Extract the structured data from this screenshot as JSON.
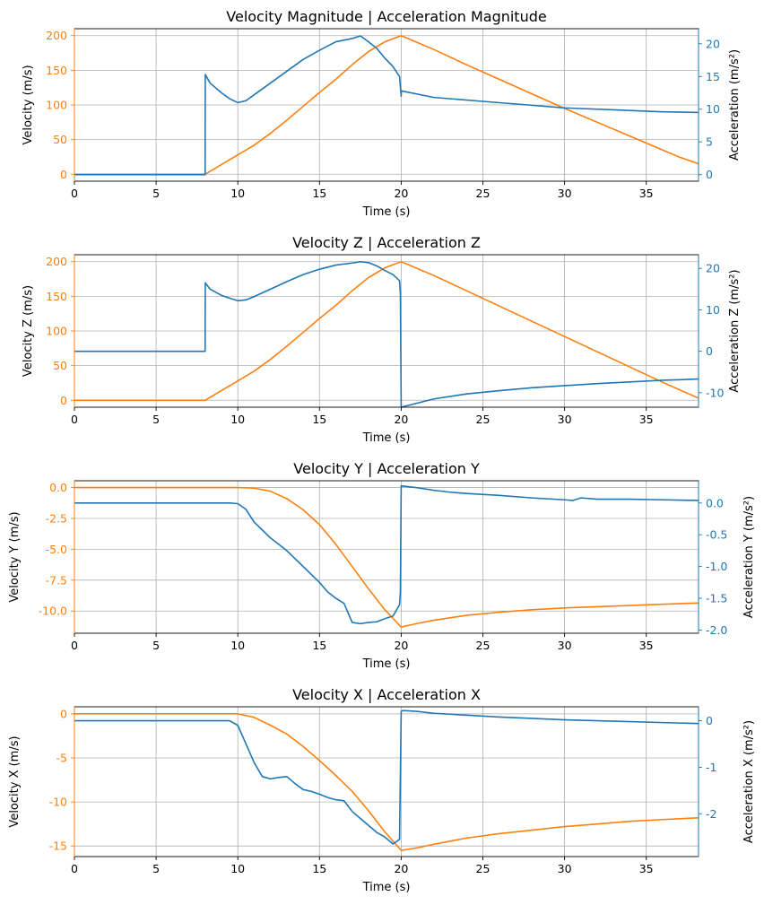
{
  "colors": {
    "velocity": "#ff7f0e",
    "acceleration": "#1f77b4",
    "grid": "#b0b0b0",
    "axis": "#000000"
  },
  "chart_data": [
    {
      "type": "line",
      "title": "Velocity Magnitude | Acceleration Magnitude",
      "xlabel": "Time (s)",
      "ylabel_left": "Velocity (m/s)",
      "ylabel_right": "Acceleration (m/s²)",
      "xlim": [
        0,
        38.2
      ],
      "ylim_left": [
        -10,
        210
      ],
      "ylim_right": [
        -1,
        22.3
      ],
      "xticks": [
        0,
        5,
        10,
        15,
        20,
        25,
        30,
        35
      ],
      "yticks_left": [
        0,
        50,
        100,
        150,
        200
      ],
      "yticks_right": [
        0,
        5,
        10,
        15,
        20
      ],
      "grid": true,
      "series": [
        {
          "axis": "left",
          "color": "#ff7f0e",
          "x": [
            0,
            8,
            9,
            10,
            11,
            12,
            13,
            14,
            15,
            16,
            17,
            18,
            19,
            20,
            22,
            24,
            26,
            28,
            30,
            32,
            34,
            36,
            37,
            38.2
          ],
          "y": [
            0,
            0,
            14,
            28,
            42,
            59,
            78,
            98,
            118,
            137,
            158,
            177,
            191,
            200,
            180,
            158,
            137,
            116,
            95,
            75,
            55,
            35,
            25,
            15
          ]
        },
        {
          "axis": "right",
          "color": "#1f77b4",
          "x": [
            0,
            8,
            8.01,
            8.3,
            9,
            9.5,
            10,
            10.5,
            11,
            12,
            13,
            14,
            15,
            16,
            17,
            17.5,
            18,
            18.5,
            19,
            19.5,
            19.9,
            20,
            20.01,
            22,
            25,
            28,
            30,
            33,
            36,
            38.2
          ],
          "y": [
            0,
            0,
            15.3,
            14,
            12.5,
            11.6,
            11,
            11.3,
            12.2,
            14,
            15.8,
            17.6,
            19,
            20.3,
            20.8,
            21.2,
            20.3,
            19.3,
            17.8,
            16.5,
            15,
            12,
            12.8,
            11.8,
            11.2,
            10.6,
            10.2,
            9.9,
            9.6,
            9.5
          ]
        }
      ]
    },
    {
      "type": "line",
      "title": "Velocity Z | Acceleration Z",
      "xlabel": "Time (s)",
      "ylabel_left": "Velocity Z (m/s)",
      "ylabel_right": "Acceleration Z (m/s²)",
      "xlim": [
        0,
        38.2
      ],
      "ylim_left": [
        -10,
        210
      ],
      "ylim_right": [
        -13.5,
        23.3
      ],
      "xticks": [
        0,
        5,
        10,
        15,
        20,
        25,
        30,
        35
      ],
      "yticks_left": [
        0,
        50,
        100,
        150,
        200
      ],
      "yticks_right": [
        -10,
        0,
        10,
        20
      ],
      "grid": true,
      "series": [
        {
          "axis": "left",
          "color": "#ff7f0e",
          "x": [
            0,
            8,
            9,
            10,
            11,
            12,
            13,
            14,
            15,
            16,
            17,
            18,
            19,
            20,
            22,
            24,
            26,
            28,
            30,
            32,
            34,
            36,
            38.2
          ],
          "y": [
            0,
            0,
            14,
            28,
            42,
            59,
            78,
            98,
            118,
            137,
            158,
            177,
            191,
            200,
            180,
            158,
            136,
            114,
            92,
            70,
            48,
            26,
            3
          ]
        },
        {
          "axis": "right",
          "color": "#1f77b4",
          "x": [
            0,
            8,
            8.01,
            8.3,
            9,
            9.5,
            10,
            10.5,
            11,
            12,
            13,
            14,
            15,
            16,
            17,
            17.5,
            18,
            18.5,
            19,
            19.5,
            19.9,
            19.95,
            20,
            21,
            22,
            24,
            26,
            28,
            30,
            32,
            34,
            36,
            38.2
          ],
          "y": [
            0,
            0,
            16.5,
            15,
            13.5,
            12.8,
            12.2,
            12.4,
            13.2,
            15,
            16.8,
            18.5,
            19.8,
            20.8,
            21.3,
            21.6,
            21.4,
            20.6,
            19.5,
            18.5,
            17,
            14,
            -13.5,
            -12.5,
            -11.5,
            -10.3,
            -9.5,
            -8.8,
            -8.3,
            -7.8,
            -7.4,
            -7.0,
            -6.7
          ]
        }
      ]
    },
    {
      "type": "line",
      "title": "Velocity Y | Acceleration Y",
      "xlabel": "Time (s)",
      "ylabel_left": "Velocity Y (m/s)",
      "ylabel_right": "Acceleration Y (m/s²)",
      "xlim": [
        0,
        38.2
      ],
      "ylim_left": [
        -11.8,
        0.55
      ],
      "ylim_right": [
        -2.05,
        0.35
      ],
      "xticks": [
        0,
        5,
        10,
        15,
        20,
        25,
        30,
        35
      ],
      "yticks_left": [
        0.0,
        -2.5,
        -5.0,
        -7.5,
        -10.0
      ],
      "yticks_right": [
        0.0,
        -0.5,
        -1.0,
        -1.5,
        -2.0
      ],
      "grid": true,
      "series": [
        {
          "axis": "left",
          "color": "#ff7f0e",
          "x": [
            0,
            10,
            11,
            12,
            13,
            14,
            15,
            16,
            17,
            18,
            19,
            20,
            21,
            22,
            24,
            26,
            28,
            30,
            32,
            34,
            36,
            38.2
          ],
          "y": [
            0,
            0,
            -0.05,
            -0.3,
            -0.9,
            -1.8,
            -3.0,
            -4.6,
            -6.4,
            -8.2,
            -9.9,
            -11.3,
            -11.0,
            -10.75,
            -10.35,
            -10.1,
            -9.9,
            -9.75,
            -9.65,
            -9.55,
            -9.45,
            -9.35
          ]
        },
        {
          "axis": "right",
          "color": "#1f77b4",
          "x": [
            0,
            9.5,
            10,
            10.5,
            11,
            12,
            13,
            14,
            15,
            15.5,
            16,
            16.5,
            17,
            17.5,
            18,
            18.5,
            19,
            19.5,
            19.9,
            19.95,
            20,
            21,
            22,
            23,
            24,
            26,
            28,
            30,
            30.5,
            31,
            32,
            34,
            36,
            38.2
          ],
          "y": [
            0,
            0,
            -0.01,
            -0.1,
            -0.3,
            -0.55,
            -0.75,
            -1.0,
            -1.25,
            -1.4,
            -1.5,
            -1.58,
            -1.88,
            -1.9,
            -1.88,
            -1.87,
            -1.82,
            -1.78,
            -1.6,
            -1.4,
            0.27,
            0.24,
            0.2,
            0.17,
            0.15,
            0.12,
            0.08,
            0.05,
            0.04,
            0.08,
            0.06,
            0.06,
            0.05,
            0.04
          ]
        }
      ]
    },
    {
      "type": "line",
      "title": "Velocity X | Acceleration X",
      "xlabel": "Time (s)",
      "ylabel_left": "Velocity X (m/s)",
      "ylabel_right": "Acceleration X (m/s²)",
      "xlim": [
        0,
        38.2
      ],
      "ylim_left": [
        -16.2,
        0.8
      ],
      "ylim_right": [
        -2.92,
        0.3
      ],
      "xticks": [
        0,
        5,
        10,
        15,
        20,
        25,
        30,
        35
      ],
      "yticks_left": [
        0,
        -5,
        -10,
        -15
      ],
      "yticks_right": [
        0,
        -1,
        -2
      ],
      "grid": true,
      "series": [
        {
          "axis": "left",
          "color": "#ff7f0e",
          "x": [
            0,
            10,
            11,
            12,
            13,
            14,
            15,
            16,
            17,
            18,
            19,
            20,
            21,
            22,
            24,
            26,
            28,
            30,
            32,
            34,
            36,
            38.2
          ],
          "y": [
            0,
            0,
            -0.4,
            -1.3,
            -2.3,
            -3.7,
            -5.3,
            -7.0,
            -8.8,
            -11.0,
            -13.4,
            -15.5,
            -15.2,
            -14.8,
            -14.1,
            -13.6,
            -13.2,
            -12.8,
            -12.5,
            -12.2,
            -12.0,
            -11.8
          ]
        },
        {
          "axis": "right",
          "color": "#1f77b4",
          "x": [
            0,
            9.5,
            10,
            10.5,
            11,
            11.5,
            12,
            12.5,
            13,
            13.5,
            14,
            14.5,
            15,
            15.5,
            16,
            16.5,
            17,
            17.5,
            18,
            18.5,
            19,
            19.5,
            19.9,
            20,
            20.1,
            21,
            22,
            24,
            26,
            28,
            30,
            32,
            34,
            36,
            38.2
          ],
          "y": [
            0,
            0,
            -0.1,
            -0.5,
            -0.9,
            -1.2,
            -1.25,
            -1.22,
            -1.2,
            -1.35,
            -1.48,
            -1.52,
            -1.58,
            -1.65,
            -1.7,
            -1.72,
            -1.95,
            -2.1,
            -2.25,
            -2.4,
            -2.5,
            -2.65,
            -2.55,
            0.2,
            0.22,
            0.2,
            0.16,
            0.12,
            0.08,
            0.05,
            0.02,
            0,
            -0.02,
            -0.04,
            -0.06
          ]
        }
      ]
    }
  ]
}
